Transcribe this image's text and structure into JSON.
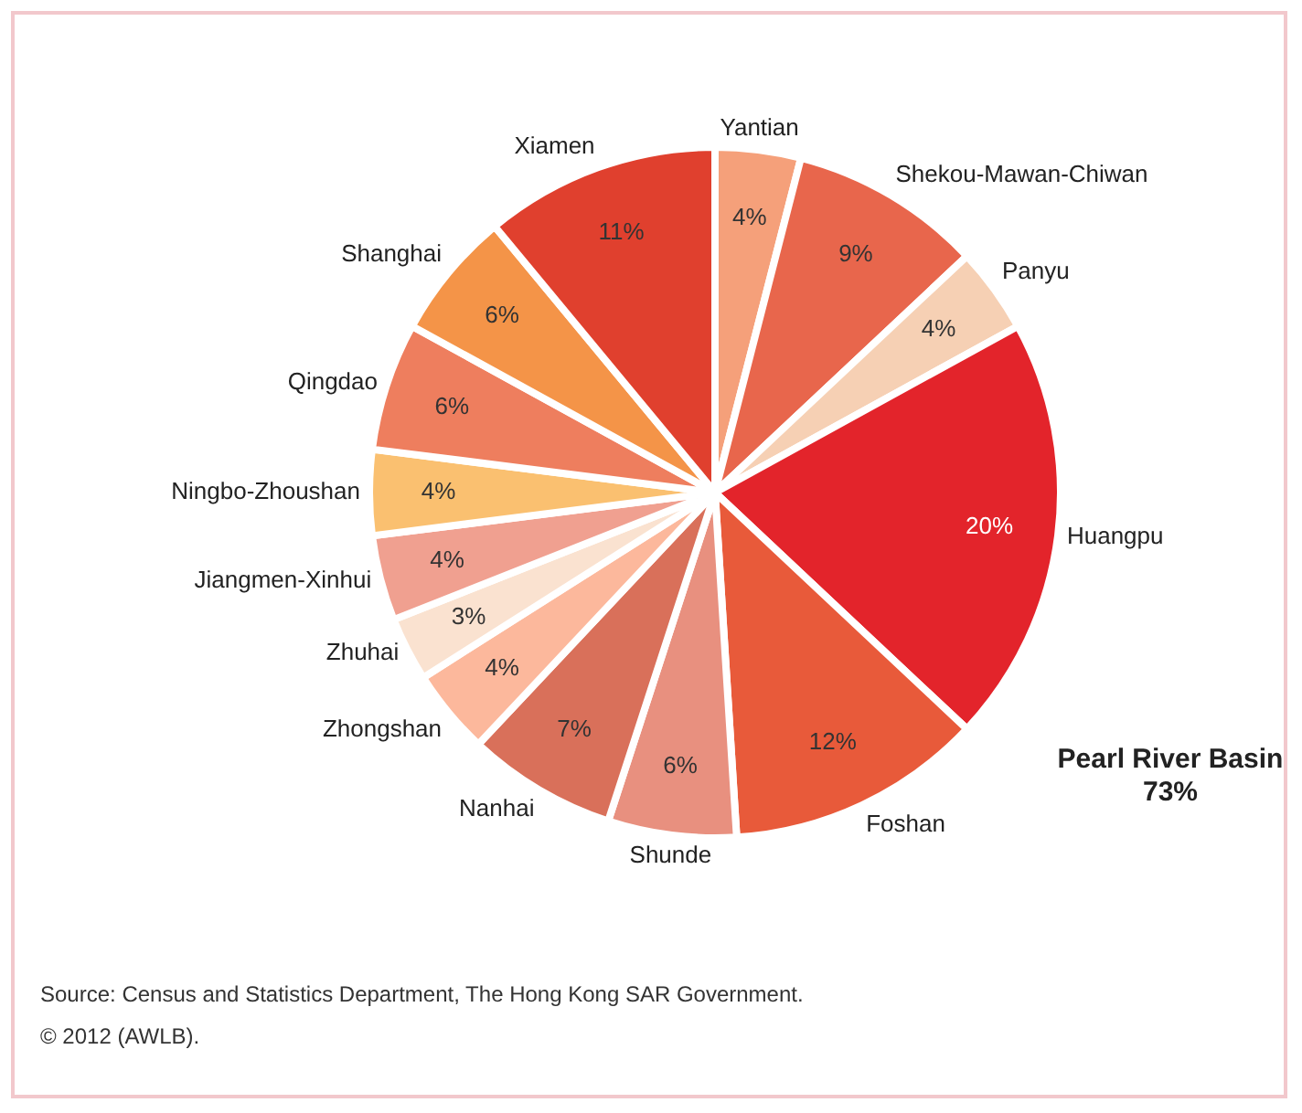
{
  "chart_data": {
    "type": "pie",
    "categories": [
      "Yantian",
      "Shekou-Mawan-Chiwan",
      "Panyu",
      "Huangpu",
      "Foshan",
      "Shunde",
      "Nanhai",
      "Zhongshan",
      "Zhuhai",
      "Jiangmen-Xinhui",
      "Ningbo-Zhoushan",
      "Qingdao",
      "Shanghai",
      "Xiamen"
    ],
    "values": [
      4,
      9,
      4,
      20,
      12,
      6,
      7,
      4,
      3,
      4,
      4,
      6,
      6,
      11
    ],
    "value_labels": [
      "4%",
      "9%",
      "4%",
      "20%",
      "12%",
      "6%",
      "7%",
      "4%",
      "3%",
      "4%",
      "4%",
      "6%",
      "6%",
      "11%"
    ],
    "colors": [
      "#f5a07a",
      "#e8664c",
      "#f6d0b4",
      "#e3242b",
      "#e85a3a",
      "#e8907f",
      "#d9705a",
      "#fcb89c",
      "#fae2d0",
      "#f0a090",
      "#fac070",
      "#ee7e5e",
      "#f49448",
      "#e0402e"
    ],
    "legend": false,
    "annotations": [
      "Pearl River Basin 73%",
      "Source: Census and Statistics Department, The Hong Kong SAR Government.",
      "© 2012 (AWLB)."
    ]
  }
}
